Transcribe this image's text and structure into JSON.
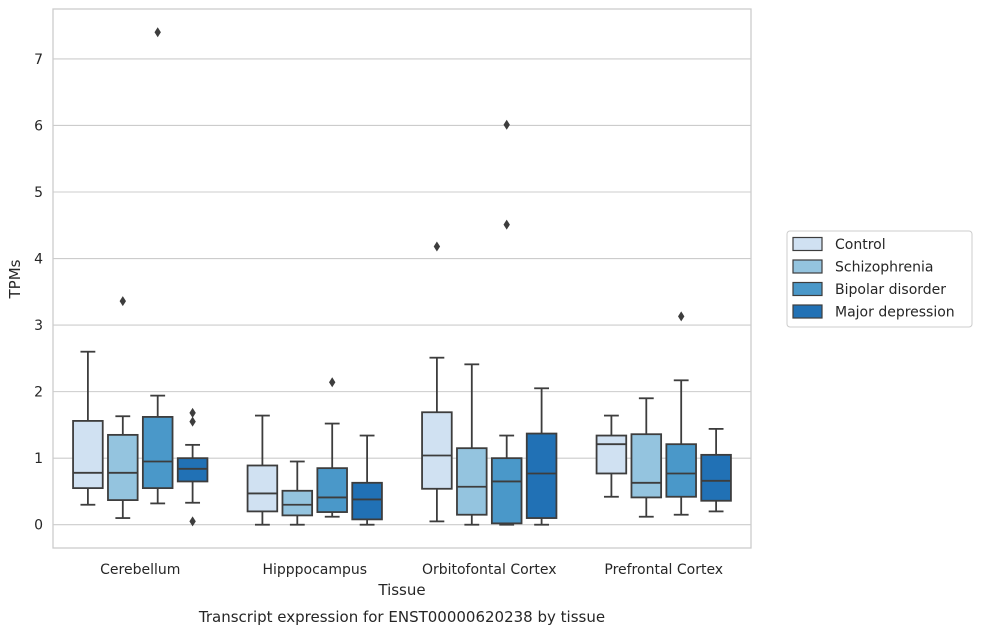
{
  "chart_data": {
    "type": "box",
    "title": "",
    "caption": "Transcript expression for ENST00000620238 by tissue",
    "xlabel": "Tissue",
    "ylabel": "TPMs",
    "ylim": [
      -0.35,
      7.75
    ],
    "yticks": [
      0,
      1,
      2,
      3,
      4,
      5,
      6,
      7
    ],
    "grid": "horizontal",
    "legend_position": "right",
    "categories": [
      "Cerebellum",
      "Hipppocampus",
      "Orbitofontal Cortex",
      "Prefrontal Cortex"
    ],
    "series": [
      {
        "name": "Control",
        "color": "#d0e1f2",
        "boxes": [
          {
            "whislo": 0.3,
            "q1": 0.55,
            "med": 0.78,
            "q3": 1.56,
            "whishi": 2.6,
            "fliers": []
          },
          {
            "whislo": 0.0,
            "q1": 0.2,
            "med": 0.47,
            "q3": 0.89,
            "whishi": 1.64,
            "fliers": []
          },
          {
            "whislo": 0.05,
            "q1": 0.54,
            "med": 1.04,
            "q3": 1.69,
            "whishi": 2.51,
            "fliers": [
              4.18
            ]
          },
          {
            "whislo": 0.42,
            "q1": 0.77,
            "med": 1.21,
            "q3": 1.34,
            "whishi": 1.64,
            "fliers": []
          }
        ]
      },
      {
        "name": "Schizophrenia",
        "color": "#94c4df",
        "boxes": [
          {
            "whislo": 0.1,
            "q1": 0.37,
            "med": 0.78,
            "q3": 1.35,
            "whishi": 1.63,
            "fliers": [
              3.36
            ]
          },
          {
            "whislo": 0.0,
            "q1": 0.14,
            "med": 0.3,
            "q3": 0.51,
            "whishi": 0.95,
            "fliers": []
          },
          {
            "whislo": 0.0,
            "q1": 0.15,
            "med": 0.57,
            "q3": 1.15,
            "whishi": 2.41,
            "fliers": []
          },
          {
            "whislo": 0.12,
            "q1": 0.41,
            "med": 0.63,
            "q3": 1.36,
            "whishi": 1.9,
            "fliers": []
          }
        ]
      },
      {
        "name": "Bipolar disorder",
        "color": "#4a98c9",
        "boxes": [
          {
            "whislo": 0.32,
            "q1": 0.55,
            "med": 0.95,
            "q3": 1.62,
            "whishi": 1.94,
            "fliers": [
              7.4
            ]
          },
          {
            "whislo": 0.12,
            "q1": 0.19,
            "med": 0.41,
            "q3": 0.85,
            "whishi": 1.52,
            "fliers": [
              2.14
            ]
          },
          {
            "whislo": 0.0,
            "q1": 0.02,
            "med": 0.65,
            "q3": 1.0,
            "whishi": 1.34,
            "fliers": [
              4.51,
              6.01
            ]
          },
          {
            "whislo": 0.15,
            "q1": 0.42,
            "med": 0.77,
            "q3": 1.21,
            "whishi": 2.17,
            "fliers": [
              3.13
            ]
          }
        ]
      },
      {
        "name": "Major depression",
        "color": "#2171b5",
        "boxes": [
          {
            "whislo": 0.33,
            "q1": 0.65,
            "med": 0.84,
            "q3": 1.0,
            "whishi": 1.2,
            "fliers": [
              1.68,
              1.55,
              0.05
            ]
          },
          {
            "whislo": 0.0,
            "q1": 0.08,
            "med": 0.38,
            "q3": 0.63,
            "whishi": 1.34,
            "fliers": []
          },
          {
            "whislo": 0.0,
            "q1": 0.1,
            "med": 0.77,
            "q3": 1.37,
            "whishi": 2.05,
            "fliers": []
          },
          {
            "whislo": 0.2,
            "q1": 0.36,
            "med": 0.66,
            "q3": 1.05,
            "whishi": 1.44,
            "fliers": []
          }
        ]
      }
    ]
  }
}
